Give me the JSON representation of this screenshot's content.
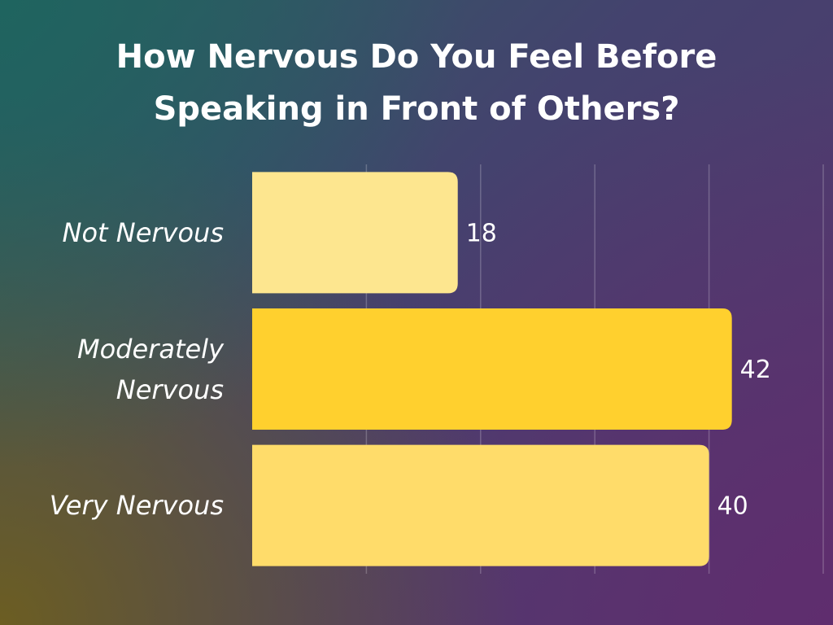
{
  "chart_data": {
    "type": "bar",
    "orientation": "horizontal",
    "title": "How Nervous Do You Feel Before Speaking in Front of Others?",
    "categories": [
      "Not Nervous",
      "Moderately Nervous",
      "Very Nervous"
    ],
    "values": [
      18,
      42,
      40
    ],
    "colors": [
      "#fde68f",
      "#ffd02e",
      "#ffdc6a"
    ],
    "xlim": [
      0,
      50
    ],
    "xticks": [
      10,
      20,
      30,
      40,
      50
    ],
    "grid": true
  }
}
